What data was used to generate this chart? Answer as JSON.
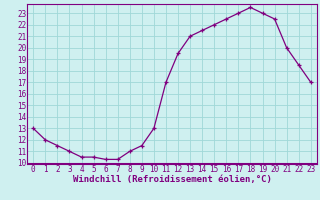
{
  "hours": [
    0,
    1,
    2,
    3,
    4,
    5,
    6,
    7,
    8,
    9,
    10,
    11,
    12,
    13,
    14,
    15,
    16,
    17,
    18,
    19,
    20,
    21,
    22,
    23
  ],
  "temps": [
    13,
    12,
    11.5,
    11,
    10.5,
    10.5,
    10.3,
    10.3,
    11,
    11.5,
    13,
    17,
    19.5,
    21,
    21.5,
    22,
    22.5,
    23,
    23.5,
    23,
    22.5,
    20,
    18.5,
    17
  ],
  "ylim_min": 10,
  "ylim_max": 23.5,
  "yticks": [
    10,
    11,
    12,
    13,
    14,
    15,
    16,
    17,
    18,
    19,
    20,
    21,
    22,
    23
  ],
  "xticks": [
    0,
    1,
    2,
    3,
    4,
    5,
    6,
    7,
    8,
    9,
    10,
    11,
    12,
    13,
    14,
    15,
    16,
    17,
    18,
    19,
    20,
    21,
    22,
    23
  ],
  "line_color": "#800080",
  "marker": "+",
  "bg_color": "#cff0f0",
  "grid_color": "#a0d8d8",
  "border_color": "#800080",
  "xlabel": "Windchill (Refroidissement éolien,°C)",
  "xlabel_fontsize": 6.5,
  "tick_fontsize": 5.5,
  "marker_size": 3.5,
  "linewidth": 0.9
}
